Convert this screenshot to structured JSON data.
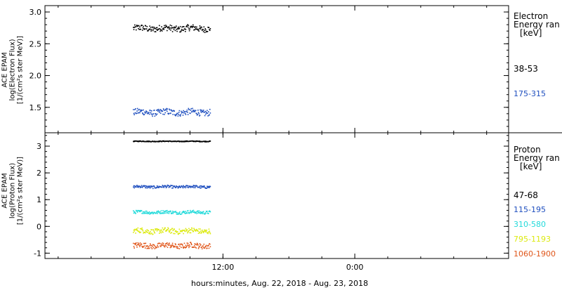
{
  "colors": {
    "black": "#000000",
    "blue": "#1f4fbf",
    "cyan": "#22dada",
    "yellow": "#dcea10",
    "orange": "#e0561a"
  },
  "x_axis": {
    "label": "hours:minutes, Aug. 22, 2018 - Aug. 23, 2018",
    "ticks": [
      "12:00",
      "0:00"
    ]
  },
  "chart_data": [
    {
      "type": "scatter",
      "ylabel": [
        "ACE EPAM",
        "log(Electron Flux)",
        "[1/(cm²s ster MeV)]"
      ],
      "ylim": [
        1.1,
        3.1
      ],
      "yticks": [
        "1.5",
        "2.0",
        "2.5",
        "3.0"
      ],
      "x_ticks_hours": [
        12,
        24
      ],
      "xlim_hours": [
        -4.2,
        38.0
      ],
      "data_x_range_hours": [
        3.8,
        10.8
      ],
      "legend": {
        "title_line1": "Electron",
        "title_line2": "Energy ran",
        "unit": "[keV]",
        "position": "right"
      },
      "series": [
        {
          "name": "38-53",
          "color": "black",
          "values_approx": {
            "center": 2.75,
            "spread": 0.1
          }
        },
        {
          "name": "175-315",
          "color": "blue",
          "values_approx": {
            "center": 1.43,
            "spread": 0.1
          }
        }
      ]
    },
    {
      "type": "scatter",
      "ylabel": [
        "ACE EPAM",
        "log(Proton Flux)",
        "[1/(cm²s ster MeV)]"
      ],
      "ylim": [
        -1.2,
        3.5
      ],
      "yticks": [
        "-1",
        "0",
        "1",
        "2",
        "3"
      ],
      "x_ticks_hours": [
        12,
        24
      ],
      "xlim_hours": [
        -4.2,
        38.0
      ],
      "data_x_range_hours": [
        3.8,
        10.8
      ],
      "legend": {
        "title_line1": "Proton",
        "title_line2": "Energy ran",
        "unit": "[keV]",
        "position": "right"
      },
      "series": [
        {
          "name": "47-68",
          "color": "black",
          "values_approx": {
            "center": 3.2,
            "spread": 0.03
          }
        },
        {
          "name": "115-195",
          "color": "blue",
          "values_approx": {
            "center": 1.5,
            "spread": 0.1
          }
        },
        {
          "name": "310-580",
          "color": "cyan",
          "values_approx": {
            "center": 0.55,
            "spread": 0.12
          }
        },
        {
          "name": "795-1193",
          "color": "yellow",
          "values_approx": {
            "center": -0.15,
            "spread": 0.2
          }
        },
        {
          "name": "1060-1900",
          "color": "orange",
          "values_approx": {
            "center": -0.7,
            "spread": 0.2
          }
        }
      ]
    }
  ]
}
